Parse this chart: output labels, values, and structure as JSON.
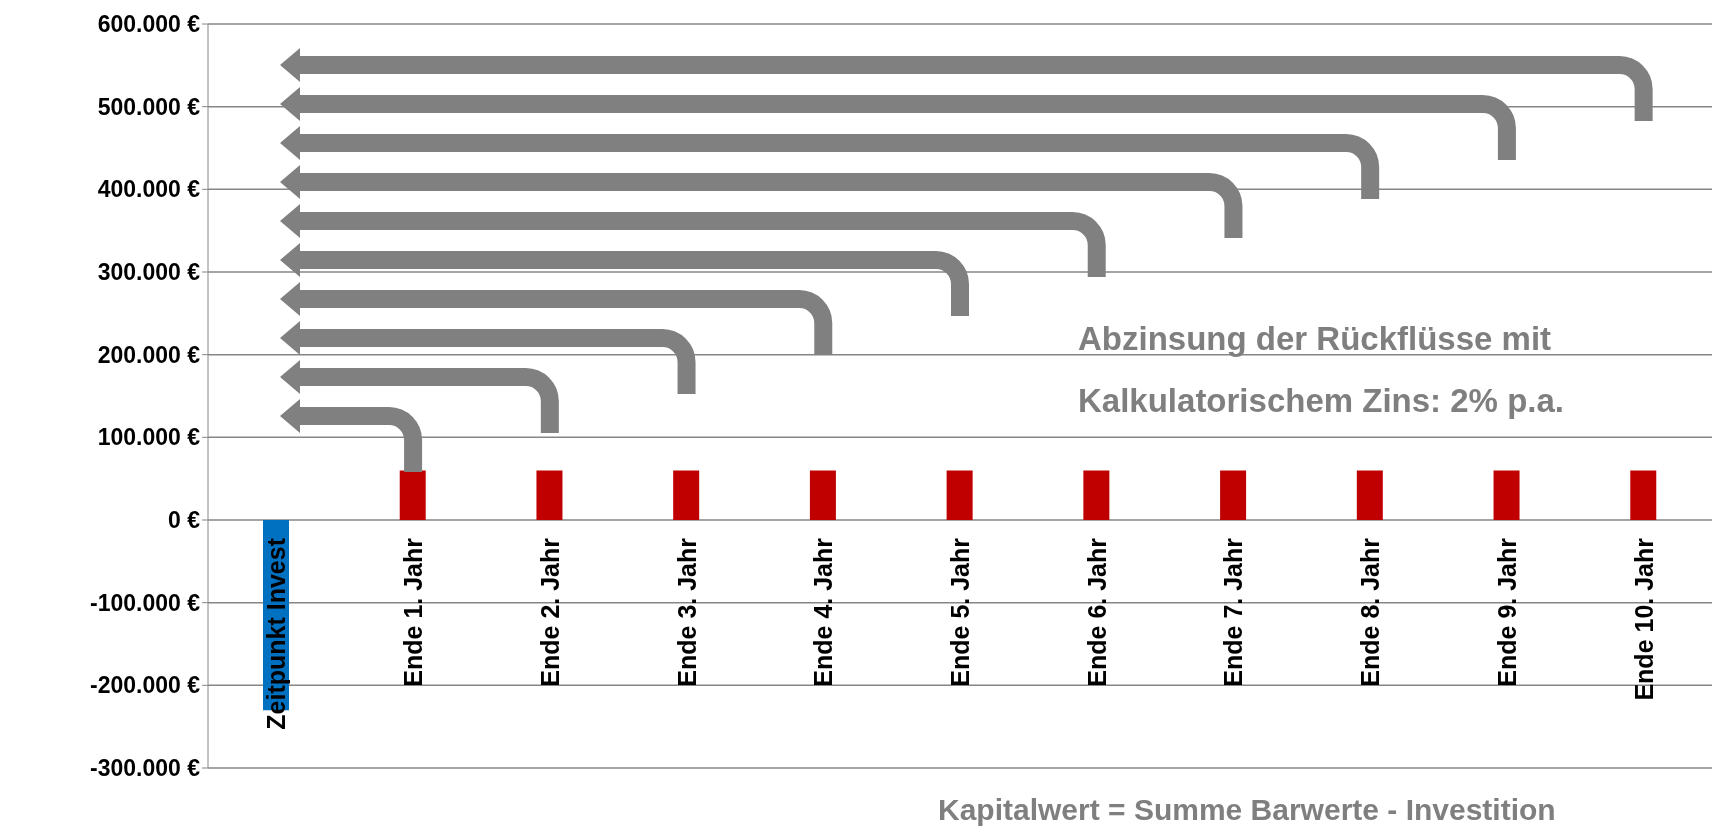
{
  "chart_data": {
    "type": "bar",
    "categories": [
      "Zeitpunkt Invest",
      "Ende 1. Jahr",
      "Ende 2. Jahr",
      "Ende 3. Jahr",
      "Ende 4. Jahr",
      "Ende 5. Jahr",
      "Ende 6. Jahr",
      "Ende 7. Jahr",
      "Ende 8. Jahr",
      "Ende 9. Jahr",
      "Ende 10. Jahr"
    ],
    "values": [
      -230000,
      60000,
      60000,
      60000,
      60000,
      60000,
      60000,
      60000,
      60000,
      60000,
      60000
    ],
    "colors": [
      "#0070c0",
      "#c00000",
      "#c00000",
      "#c00000",
      "#c00000",
      "#c00000",
      "#c00000",
      "#c00000",
      "#c00000",
      "#c00000",
      "#c00000"
    ],
    "ylim": [
      -300000,
      600000
    ],
    "yticks": [
      {
        "value": -300000,
        "label": "-300.000 €"
      },
      {
        "value": -200000,
        "label": "-200.000 €"
      },
      {
        "value": -100000,
        "label": "-100.000 €"
      },
      {
        "value": 0,
        "label": "0 €"
      },
      {
        "value": 100000,
        "label": "100.000 €"
      },
      {
        "value": 200000,
        "label": "200.000 €"
      },
      {
        "value": 300000,
        "label": "300.000 €"
      },
      {
        "value": 400000,
        "label": "400.000 €"
      },
      {
        "value": 500000,
        "label": "500.000 €"
      },
      {
        "value": 600000,
        "label": "600.000 €"
      }
    ],
    "grid": "y",
    "annotations": [
      "Abzinsung der Rückflüsse mit Kalkulatorischem Zins: 2% p.a.",
      "Kapitalwert = Summe Barwerte - Investition"
    ]
  }
}
